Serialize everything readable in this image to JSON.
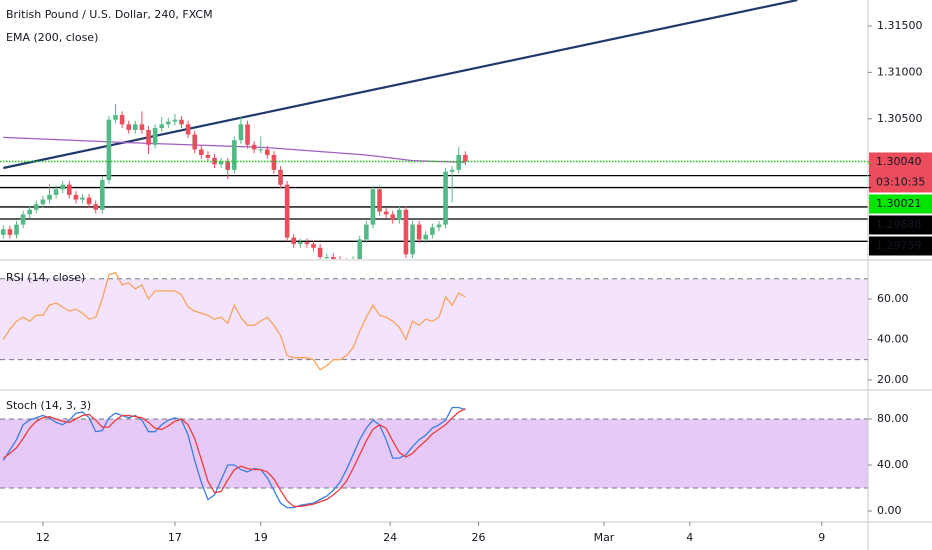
{
  "chart_data": [
    {
      "type": "candlestick",
      "title": "British Pound / U.S. Dollar, 240, FXCM",
      "up_color": "#53b987",
      "down_color": "#eb4d5c",
      "xlim": [
        -0.5,
        131
      ],
      "xticks": [
        {
          "value": 6,
          "label": "12"
        },
        {
          "value": 26,
          "label": "17"
        },
        {
          "value": 39,
          "label": "19"
        },
        {
          "value": 58.6,
          "label": "24"
        },
        {
          "value": 72,
          "label": "26"
        },
        {
          "value": 91,
          "label": "Mar"
        },
        {
          "value": 104,
          "label": "4"
        },
        {
          "value": 124,
          "label": "9"
        }
      ],
      "ylim": [
        1.29,
        1.3178
      ],
      "yticks": [
        {
          "value": 1.315,
          "label": "1.31500"
        },
        {
          "value": 1.31,
          "label": "1.31000"
        },
        {
          "value": 1.305,
          "label": "1.30500"
        }
      ],
      "candles": [
        [
          1.2925,
          1.2935,
          1.2921,
          1.2931
        ],
        [
          1.2931,
          1.2935,
          1.2921,
          1.2925
        ],
        [
          1.2925,
          1.294,
          1.2921,
          1.2936
        ],
        [
          1.2936,
          1.2951,
          1.2932,
          1.2947
        ],
        [
          1.2947,
          1.2956,
          1.2943,
          1.2952
        ],
        [
          1.2952,
          1.2962,
          1.2948,
          1.2958
        ],
        [
          1.2958,
          1.2967,
          1.2954,
          1.2963
        ],
        [
          1.2963,
          1.298,
          1.2959,
          1.2968
        ],
        [
          1.2968,
          1.2978,
          1.2964,
          1.2974
        ],
        [
          1.2974,
          1.2983,
          1.297,
          1.2979
        ],
        [
          1.2979,
          1.2983,
          1.2964,
          1.2968
        ],
        [
          1.2968,
          1.2972,
          1.2959,
          1.2963
        ],
        [
          1.2963,
          1.2969,
          1.2959,
          1.2965
        ],
        [
          1.2965,
          1.2969,
          1.2954,
          1.2958
        ],
        [
          1.2958,
          1.2962,
          1.2948,
          1.2952
        ],
        [
          1.2952,
          1.2988,
          1.2948,
          1.2984
        ],
        [
          1.2984,
          1.3053,
          1.298,
          1.3049
        ],
        [
          1.3049,
          1.3066,
          1.3045,
          1.3054
        ],
        [
          1.3054,
          1.3058,
          1.304,
          1.3044
        ],
        [
          1.3044,
          1.3048,
          1.3034,
          1.3038
        ],
        [
          1.3038,
          1.3048,
          1.3034,
          1.3044
        ],
        [
          1.3044,
          1.3058,
          1.3034,
          1.3038
        ],
        [
          1.3038,
          1.3042,
          1.3012,
          1.3022
        ],
        [
          1.3022,
          1.3044,
          1.3018,
          1.304
        ],
        [
          1.304,
          1.3052,
          1.3036,
          1.3044
        ],
        [
          1.3044,
          1.3051,
          1.304,
          1.3047
        ],
        [
          1.3047,
          1.3055,
          1.3043,
          1.3049
        ],
        [
          1.3049,
          1.3053,
          1.304,
          1.3044
        ],
        [
          1.3044,
          1.3048,
          1.3029,
          1.3033
        ],
        [
          1.3033,
          1.3037,
          1.3013,
          1.3017
        ],
        [
          1.3017,
          1.3021,
          1.3007,
          1.3011
        ],
        [
          1.3011,
          1.3015,
          1.3004,
          1.3008
        ],
        [
          1.3008,
          1.3012,
          1.2997,
          1.3001
        ],
        [
          1.3001,
          1.3008,
          1.2997,
          1.3004
        ],
        [
          1.3004,
          1.3008,
          1.2985,
          1.2995
        ],
        [
          1.2995,
          1.3031,
          1.2991,
          1.3027
        ],
        [
          1.3027,
          1.3052,
          1.3023,
          1.3044
        ],
        [
          1.3044,
          1.3048,
          1.3018,
          1.3022
        ],
        [
          1.3022,
          1.3026,
          1.3013,
          1.3017
        ],
        [
          1.3017,
          1.3031,
          1.3013,
          1.3017
        ],
        [
          1.3017,
          1.3021,
          1.3007,
          1.3011
        ],
        [
          1.3011,
          1.3015,
          1.2991,
          1.2995
        ],
        [
          1.2995,
          1.2999,
          1.2975,
          1.2979
        ],
        [
          1.2979,
          1.2983,
          1.2918,
          1.2922
        ],
        [
          1.2922,
          1.2926,
          1.2911,
          1.2915
        ],
        [
          1.2915,
          1.2921,
          1.2911,
          1.2917
        ],
        [
          1.2917,
          1.2921,
          1.2911,
          1.2915
        ],
        [
          1.2915,
          1.2919,
          1.2907,
          1.2911
        ],
        [
          1.2911,
          1.2915,
          1.2897,
          1.2901
        ],
        [
          1.2901,
          1.2905,
          1.2897,
          1.2901
        ],
        [
          1.2901,
          1.2905,
          1.2894,
          1.2898
        ],
        [
          1.2898,
          1.2902,
          1.2892,
          1.2896
        ],
        [
          1.2896,
          1.29,
          1.2892,
          1.2896
        ],
        [
          1.2896,
          1.2902,
          1.2892,
          1.2898
        ],
        [
          1.2898,
          1.2924,
          1.2894,
          1.292
        ],
        [
          1.292,
          1.294,
          1.2916,
          1.2936
        ],
        [
          1.2936,
          1.2978,
          1.2932,
          1.2974
        ],
        [
          1.2974,
          1.2978,
          1.2946,
          1.295
        ],
        [
          1.295,
          1.2954,
          1.2943,
          1.2947
        ],
        [
          1.2947,
          1.2951,
          1.2937,
          1.2941
        ],
        [
          1.2941,
          1.2956,
          1.2937,
          1.2952
        ],
        [
          1.2952,
          1.2956,
          1.29,
          1.2904
        ],
        [
          1.2904,
          1.294,
          1.29,
          1.2936
        ],
        [
          1.2936,
          1.294,
          1.2916,
          1.292
        ],
        [
          1.292,
          1.2929,
          1.2916,
          1.2925
        ],
        [
          1.2925,
          1.2937,
          1.2921,
          1.2933
        ],
        [
          1.2933,
          1.294,
          1.2929,
          1.2936
        ],
        [
          1.2936,
          1.2997,
          1.2932,
          1.2993
        ],
        [
          1.2993,
          1.2999,
          1.296,
          1.2995
        ],
        [
          1.2995,
          1.302,
          1.2991,
          1.3011
        ],
        [
          1.3011,
          1.3015,
          1.3,
          1.3004
        ]
      ],
      "overlays": [
        {
          "name": "EMA (200, close)",
          "color": "#a05ec4",
          "x": [
            0,
            20,
            40,
            55,
            62,
            70
          ],
          "values": [
            1.303,
            1.3024,
            1.3019,
            1.3011,
            1.3005,
            1.3003
          ]
        }
      ],
      "trendline": {
        "color": "#1f3a6b",
        "x": [
          0,
          120.3
        ],
        "values": [
          1.2997,
          1.3178
        ]
      },
      "hlines": {
        "color": "#000000",
        "values": [
          1.29888,
          1.29759,
          1.2955,
          1.2942,
          1.2918
        ]
      },
      "price_line": {
        "color": "#1bc40f",
        "value": 1.3004
      },
      "price_labels": [
        {
          "value": 1.3004,
          "label": "1.30040",
          "countdown": "03:10:35",
          "color": "#eb4d5c",
          "text_color": "#ffffff"
        },
        {
          "value": 1.30021,
          "label": "1.30021",
          "color": "#00e600",
          "text_color": "#000000"
        },
        {
          "value": 1.29888,
          "label": "1.29888",
          "color": "#000000",
          "text_color": "#ffffff"
        },
        {
          "value": 1.29759,
          "label": "1.29759",
          "color": "#000000",
          "text_color": "#ffffff"
        }
      ]
    },
    {
      "type": "line",
      "title": "RSI (14, close)",
      "ylim": [
        16,
        76.8
      ],
      "yticks": [
        {
          "value": 60,
          "label": "60.00"
        },
        {
          "value": 40,
          "label": "40.00"
        },
        {
          "value": 20,
          "label": "20.00"
        }
      ],
      "bands": [
        70,
        30
      ],
      "band_color": "#f3e3fc",
      "series": [
        {
          "color": "#f6a45c",
          "values": [
            40,
            45,
            49,
            51,
            49,
            52,
            52,
            57,
            58,
            56,
            54,
            55,
            53,
            50,
            51,
            60,
            72,
            73,
            67,
            68,
            65,
            67,
            60,
            64,
            64,
            64,
            64,
            62,
            56,
            54,
            53,
            52,
            50,
            51,
            48,
            57,
            51,
            47,
            47,
            49,
            51,
            47,
            42,
            32,
            31,
            31,
            31,
            30,
            25,
            27,
            30,
            30,
            32,
            36,
            44,
            51,
            57,
            52,
            51,
            49,
            46,
            40,
            49,
            47,
            50,
            49,
            51,
            61,
            57,
            63,
            61
          ]
        }
      ]
    },
    {
      "type": "line",
      "title": "Stoch (14, 3, 3)",
      "ylim": [
        -7.8,
        102.6
      ],
      "yticks": [
        {
          "value": 80,
          "label": "80.00"
        },
        {
          "value": 40,
          "label": "40.00"
        },
        {
          "value": 0,
          "label": "0.00"
        }
      ],
      "bands": [
        80,
        20
      ],
      "band_color": "#e6c9f7",
      "series": [
        {
          "color": "#3c7ee0",
          "values": [
            44,
            53,
            62,
            75,
            79,
            81,
            83,
            81,
            77,
            75,
            79,
            85,
            86,
            81,
            69,
            70,
            81,
            85,
            83,
            81,
            83,
            79,
            69,
            69,
            75,
            79,
            81,
            79,
            66,
            44,
            25,
            10,
            14,
            27,
            40,
            40,
            36,
            34,
            37,
            36,
            29,
            18,
            7,
            3,
            3,
            5,
            6,
            7,
            10,
            13,
            18,
            25,
            36,
            49,
            62,
            72,
            79,
            75,
            62,
            46,
            46,
            49,
            56,
            62,
            66,
            72,
            75,
            79,
            90,
            90,
            88
          ]
        },
        {
          "color": "#ef3b3b",
          "values": [
            46,
            50,
            55,
            63,
            72,
            78,
            81,
            82,
            80,
            78,
            77,
            80,
            83,
            84,
            79,
            73,
            73,
            79,
            83,
            83,
            82,
            81,
            77,
            72,
            71,
            74,
            78,
            80,
            75,
            63,
            45,
            26,
            16,
            17,
            27,
            36,
            39,
            37,
            36,
            36,
            34,
            28,
            18,
            9,
            4,
            4,
            5,
            6,
            8,
            10,
            14,
            19,
            26,
            37,
            49,
            61,
            71,
            75,
            72,
            61,
            51,
            47,
            50,
            56,
            61,
            67,
            71,
            75,
            81,
            86,
            89
          ]
        }
      ]
    }
  ]
}
